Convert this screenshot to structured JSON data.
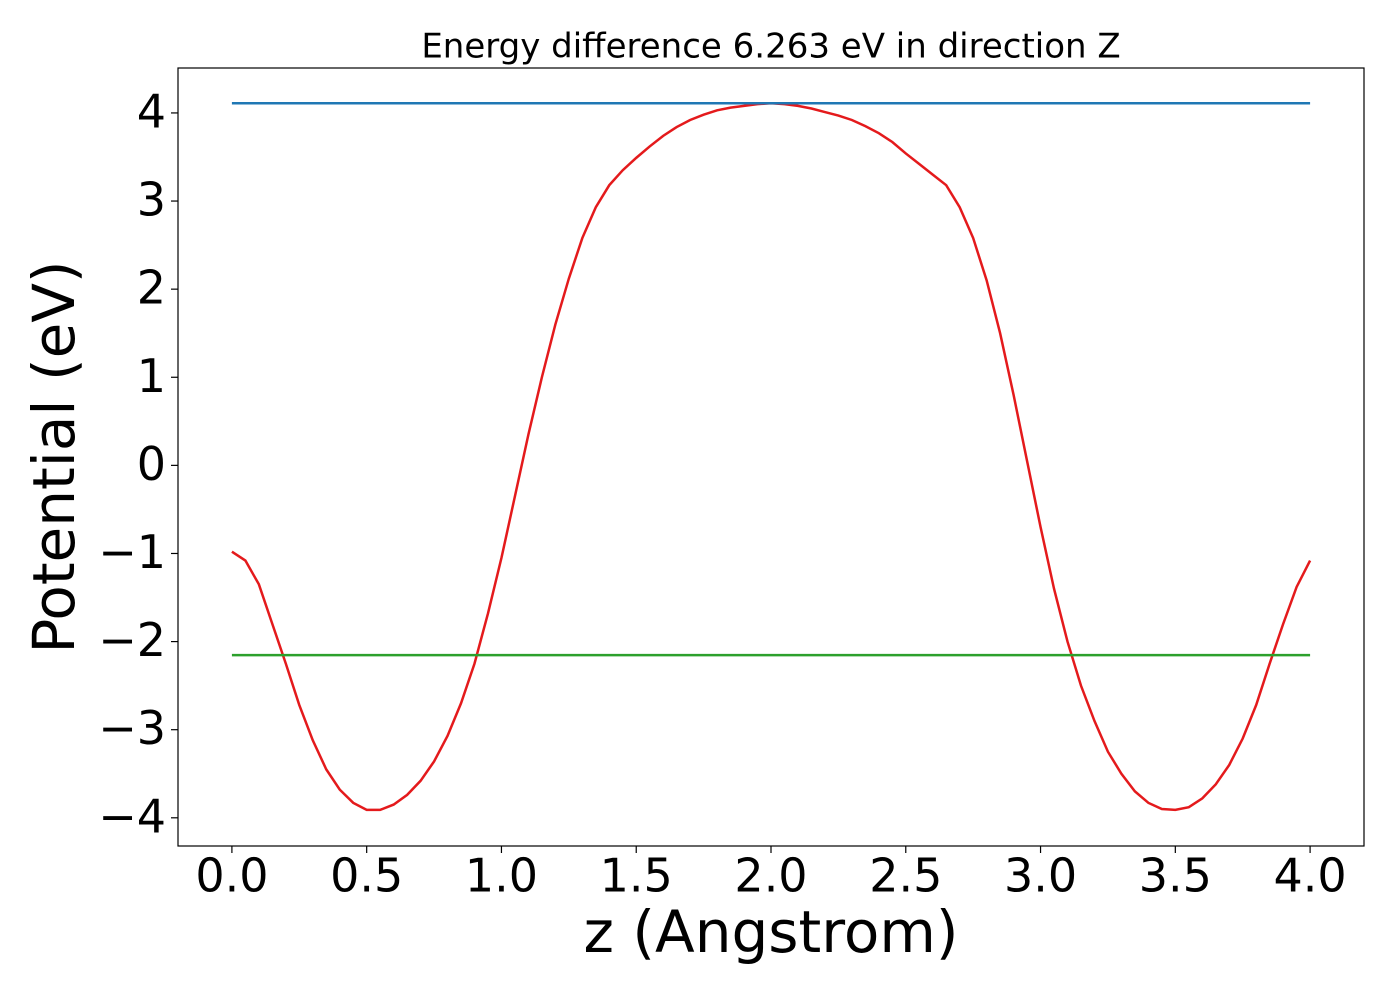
{
  "chart_data": {
    "type": "line",
    "title": "Energy difference 6.263 eV in direction Z",
    "xlabel": "z (Angstrom)",
    "ylabel": "Potential (eV)",
    "xlim": [
      -0.2,
      4.2
    ],
    "ylim": [
      -4.32,
      4.51
    ],
    "xticks": [
      {
        "value": 0,
        "label": "0.0"
      },
      0.5,
      {
        "value": 1,
        "label": "1.0"
      },
      1.5,
      {
        "value": 2,
        "label": "2.0"
      },
      2.5,
      {
        "value": 3,
        "label": "3.0"
      },
      3.5,
      {
        "value": 4,
        "label": "4.0"
      }
    ],
    "yticks": [
      {
        "value": -4,
        "label": "−4"
      },
      {
        "value": -3,
        "label": "−3"
      },
      {
        "value": -2,
        "label": "−2"
      },
      {
        "value": -1,
        "label": "−1"
      },
      0,
      1,
      2,
      3,
      4
    ],
    "series": [
      {
        "color": "#e41a1c",
        "x": [
          0,
          0.05,
          0.1,
          0.15,
          0.2,
          0.25,
          0.3,
          0.35,
          0.4,
          0.45,
          0.5,
          0.55,
          0.6,
          0.65,
          0.7,
          0.75,
          0.8,
          0.85,
          0.9,
          0.95,
          1,
          1.05,
          1.1,
          1.15,
          1.2,
          1.25,
          1.3,
          1.35,
          1.4,
          1.45,
          1.5,
          1.55,
          1.6,
          1.65,
          1.7,
          1.75,
          1.8,
          1.85,
          1.9,
          1.95,
          2,
          2.05,
          2.1,
          2.15,
          2.2,
          2.25,
          2.3,
          2.35,
          2.4,
          2.45,
          2.5,
          2.55,
          2.6,
          2.65,
          2.7,
          2.75,
          2.8,
          2.85,
          2.9,
          2.95,
          3,
          3.05,
          3.1,
          3.15,
          3.2,
          3.25,
          3.3,
          3.35,
          3.4,
          3.45,
          3.5,
          3.55,
          3.6,
          3.65,
          3.7,
          3.75,
          3.8,
          3.85,
          3.9,
          3.95,
          4
        ],
        "values": [
          -0.98,
          -1.08,
          -1.35,
          -1.8,
          -2.25,
          -2.72,
          -3.12,
          -3.45,
          -3.68,
          -3.83,
          -3.91,
          -3.91,
          -3.85,
          -3.74,
          -3.58,
          -3.36,
          -3.07,
          -2.7,
          -2.25,
          -1.68,
          -1.05,
          -0.35,
          0.35,
          1.0,
          1.6,
          2.12,
          2.58,
          2.93,
          3.18,
          3.35,
          3.49,
          3.62,
          3.74,
          3.84,
          3.92,
          3.98,
          4.03,
          4.06,
          4.08,
          4.1,
          4.11,
          4.1,
          4.08,
          4.05,
          4.01,
          3.97,
          3.92,
          3.85,
          3.77,
          3.67,
          3.54,
          3.42,
          3.3,
          3.18,
          2.93,
          2.58,
          2.1,
          1.5,
          0.8,
          0.05,
          -0.7,
          -1.4,
          -2.0,
          -2.5,
          -2.9,
          -3.25,
          -3.5,
          -3.7,
          -3.83,
          -3.9,
          -3.91,
          -3.88,
          -3.78,
          -3.62,
          -3.4,
          -3.1,
          -2.72,
          -2.25,
          -1.8,
          -1.38,
          -1.08
        ]
      },
      {
        "color": "#1f77b4",
        "x": [
          0,
          4
        ],
        "values": [
          4.11,
          4.11
        ]
      },
      {
        "color": "#2ca02c",
        "x": [
          0,
          4
        ],
        "values": [
          -2.153,
          -2.153
        ]
      }
    ]
  }
}
